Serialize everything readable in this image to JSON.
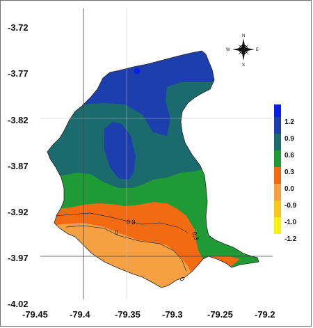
{
  "map": {
    "y_ticks": [
      "-3.72",
      "-3.77",
      "-3.82",
      "-3.87",
      "-3.92",
      "-3.97",
      "-4.02"
    ],
    "x_ticks": [
      "-79.45",
      "-79.4",
      "-79.35",
      "-79.3",
      "-79.25",
      "-79.2"
    ],
    "compass": {
      "n": "N",
      "s": "S",
      "e": "E",
      "w": "W"
    },
    "contour_labels": [
      "0.3",
      "0",
      "0.3",
      "0"
    ],
    "legend": [
      {
        "label": "1.2",
        "color": "#0a1ee6"
      },
      {
        "label": "0.9",
        "color": "#1d3fae"
      },
      {
        "label": "0.6",
        "color": "#1b6b6e"
      },
      {
        "label": "0.3",
        "color": "#1f9a35"
      },
      {
        "label": "0.0",
        "color": "#f26a12"
      },
      {
        "label": "-0.9",
        "color": "#f5a043"
      },
      {
        "label": "-1.0",
        "color": "#f7c520"
      },
      {
        "label": "-1.2",
        "color": "#f6ef10"
      }
    ]
  }
}
